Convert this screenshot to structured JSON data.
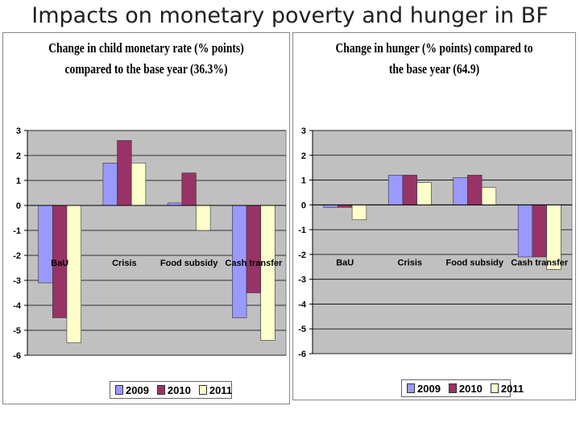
{
  "slide": {
    "title": "Impacts on monetary poverty and hunger in BF"
  },
  "chart_data": [
    {
      "type": "bar",
      "title_line1": "Change in child monetary rate (% points)",
      "title_line2": "compared to the base year (36.3%)",
      "categories": [
        "BaU",
        "Crisis",
        "Food subsidy",
        "Cash transfer"
      ],
      "series": [
        {
          "name": "2009",
          "values": [
            -3.1,
            1.7,
            0.1,
            -4.5
          ]
        },
        {
          "name": "2010",
          "values": [
            -4.5,
            2.6,
            1.3,
            -3.5
          ]
        },
        {
          "name": "2011",
          "values": [
            -5.5,
            1.7,
            -1.0,
            -5.4
          ]
        }
      ],
      "ylim": [
        -6,
        3
      ],
      "yticks": [
        "3",
        "2",
        "1",
        "0",
        "-1",
        "-2",
        "-3",
        "-4",
        "-5",
        "-6"
      ],
      "legend_position": "bottom",
      "grid": true
    },
    {
      "type": "bar",
      "title_line1": "Change in hunger (% points) compared to",
      "title_line2": "the base year (64.9)",
      "categories": [
        "BaU",
        "Crisis",
        "Food subsidy",
        "Cash transfer"
      ],
      "series": [
        {
          "name": "2009",
          "values": [
            -0.1,
            1.2,
            1.1,
            -2.1
          ]
        },
        {
          "name": "2010",
          "values": [
            -0.1,
            1.2,
            1.2,
            -2.1
          ]
        },
        {
          "name": "2011",
          "values": [
            -0.6,
            0.9,
            0.7,
            -2.6
          ]
        }
      ],
      "ylim": [
        -6,
        3
      ],
      "yticks": [
        "3",
        "2",
        "1",
        "0",
        "-1",
        "-2",
        "-3",
        "-4",
        "-5",
        "-6"
      ],
      "legend_position": "bottom",
      "grid": true
    }
  ],
  "colors": {
    "series": [
      "#9999ff",
      "#993366",
      "#ffffcc"
    ],
    "plot_bg": "#c0c0c0",
    "grid": "#000000"
  }
}
